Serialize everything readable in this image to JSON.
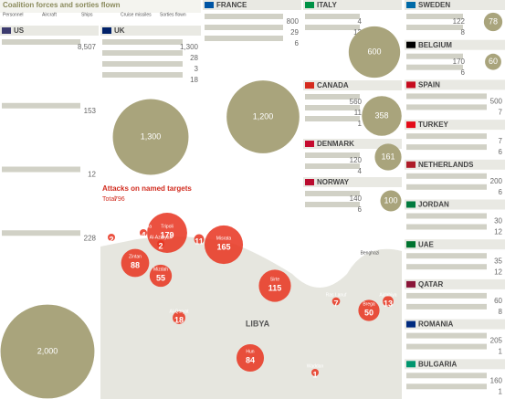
{
  "header": {
    "title": "Coalition forces and sorties flown",
    "legend": [
      "Personnel",
      "Aircraft",
      "Ships",
      "Cruise missiles",
      "Sorties flown"
    ]
  },
  "countries": [
    {
      "name": "US",
      "stats": [
        "8,507",
        "153",
        "12",
        "228"
      ],
      "sorties": 2000,
      "sorties_label": "2,000"
    },
    {
      "name": "UK",
      "stats": [
        "1,300",
        "28",
        "3",
        "18"
      ],
      "sorties": 1300,
      "sorties_label": "1,300"
    },
    {
      "name": "FRANCE",
      "stats": [
        "800",
        "29",
        "6"
      ],
      "sorties": 1200,
      "sorties_label": "1,200"
    },
    {
      "name": "ITALY",
      "stats": [
        "4",
        "12"
      ],
      "sorties": 600
    },
    {
      "name": "CANADA",
      "stats": [
        "560",
        "11",
        "1"
      ],
      "sorties": 358
    },
    {
      "name": "DENMARK",
      "stats": [
        "120",
        "4"
      ],
      "sorties": 161
    },
    {
      "name": "NORWAY",
      "stats": [
        "140",
        "6"
      ],
      "sorties": 100
    },
    {
      "name": "SWEDEN",
      "stats": [
        "122",
        "8"
      ],
      "sorties": 78
    },
    {
      "name": "BELGIUM",
      "stats": [
        "170",
        "6"
      ],
      "sorties": 60
    },
    {
      "name": "SPAIN",
      "stats": [
        "500",
        "7"
      ]
    },
    {
      "name": "TURKEY",
      "stats": [
        "7",
        "6"
      ]
    },
    {
      "name": "NETHERLANDS",
      "stats": [
        "200",
        "6"
      ]
    },
    {
      "name": "JORDAN",
      "stats": [
        "30",
        "12"
      ]
    },
    {
      "name": "UAE",
      "stats": [
        "35",
        "12"
      ]
    },
    {
      "name": "QATAR",
      "stats": [
        "60",
        "8"
      ]
    },
    {
      "name": "ROMANIA",
      "stats": [
        "205",
        "1"
      ]
    },
    {
      "name": "BULGARIA",
      "stats": [
        "160",
        "1"
      ]
    }
  ],
  "attacks": {
    "title": "Attacks on named targets",
    "total_label": "Total",
    "total": 796,
    "country_label": "LIBYA",
    "city_label": "Benghazi",
    "targets": [
      {
        "name": "Tripoli",
        "value": 179
      },
      {
        "name": "Tarhuna",
        "value": 4
      },
      {
        "name": "Al-Aziziyah",
        "value": 2
      },
      {
        "name": "Zintan",
        "value": 88
      },
      {
        "name": "Mizdah",
        "value": 55
      },
      {
        "name": "Al-Khums",
        "value": 11
      },
      {
        "name": "Misrata",
        "value": 165
      },
      {
        "name": "Sirte",
        "value": 115
      },
      {
        "name": "Al-Qaryat",
        "value": 18
      },
      {
        "name": "Hun",
        "value": 84
      },
      {
        "name": "Ras Lanuf",
        "value": 7
      },
      {
        "name": "Brega",
        "value": 50
      },
      {
        "name": "Ajdabiya",
        "value": 13
      },
      {
        "name": "Waddan",
        "value": 1
      },
      {
        "name": "Tunisian targets",
        "value": 2
      }
    ]
  }
}
